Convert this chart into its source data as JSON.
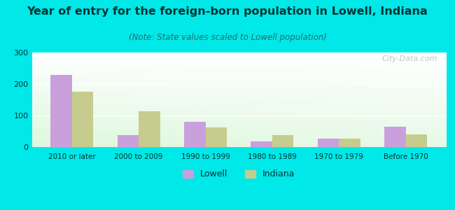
{
  "title": "Year of entry for the foreign-born population in Lowell, Indiana",
  "subtitle": "(Note: State values scaled to Lowell population)",
  "categories": [
    "2010 or later",
    "2000 to 2009",
    "1990 to 1999",
    "1980 to 1989",
    "1970 to 1979",
    "Before 1970"
  ],
  "lowell_values": [
    230,
    38,
    80,
    18,
    27,
    65
  ],
  "indiana_values": [
    175,
    113,
    63,
    38,
    27,
    40
  ],
  "lowell_color": "#c9a0dc",
  "indiana_color": "#c5cc8e",
  "background_color": "#00e8e8",
  "ylim": [
    0,
    300
  ],
  "yticks": [
    0,
    100,
    200,
    300
  ],
  "title_fontsize": 11.5,
  "subtitle_fontsize": 8.5,
  "title_color": "#003333",
  "subtitle_color": "#336666",
  "watermark_text": "City-Data.com",
  "legend_fontsize": 9
}
